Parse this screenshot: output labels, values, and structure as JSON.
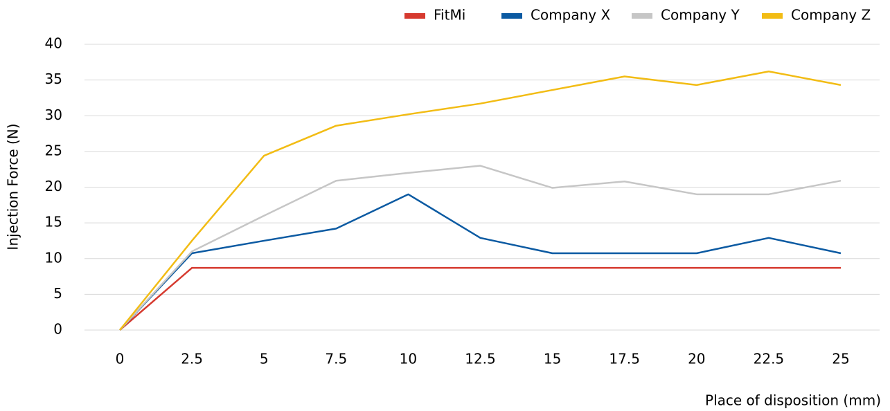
{
  "chart_data": {
    "type": "line",
    "y_label": "Injection Force (N)",
    "x_label": "Place of disposition (mm)",
    "x": [
      0,
      2.5,
      5,
      7.5,
      10,
      12.5,
      15,
      17.5,
      20,
      22.5,
      25
    ],
    "series": [
      {
        "name": "FitMi",
        "color": "#d63a2f",
        "values": [
          0,
          8.7,
          8.7,
          8.7,
          8.7,
          8.7,
          8.7,
          8.7,
          8.7,
          8.7,
          8.7
        ]
      },
      {
        "name": "Company X",
        "color": "#0b5aa2",
        "values": [
          0,
          10.75,
          12.5,
          14.2,
          19,
          12.9,
          10.75,
          10.75,
          10.75,
          12.9,
          10.75
        ]
      },
      {
        "name": "Company Y",
        "color": "#c6c6c6",
        "values": [
          0,
          11,
          16,
          20.9,
          22,
          23,
          19.9,
          20.8,
          19,
          19,
          20.9
        ]
      },
      {
        "name": "Company Z",
        "color": "#f2bc14",
        "values": [
          0,
          12.5,
          24.4,
          28.6,
          30.2,
          31.7,
          33.6,
          35.5,
          34.3,
          36.2,
          34.3
        ]
      }
    ],
    "xlim": [
      0,
      25
    ],
    "xticks": [
      0,
      2.5,
      5,
      7.5,
      10,
      12.5,
      15,
      17.5,
      20,
      22.5,
      25
    ],
    "ylim": [
      0,
      40
    ],
    "yticks": [
      0,
      5,
      10,
      15,
      20,
      25,
      30,
      35,
      40
    ],
    "grid": true,
    "legend": "top-right"
  }
}
